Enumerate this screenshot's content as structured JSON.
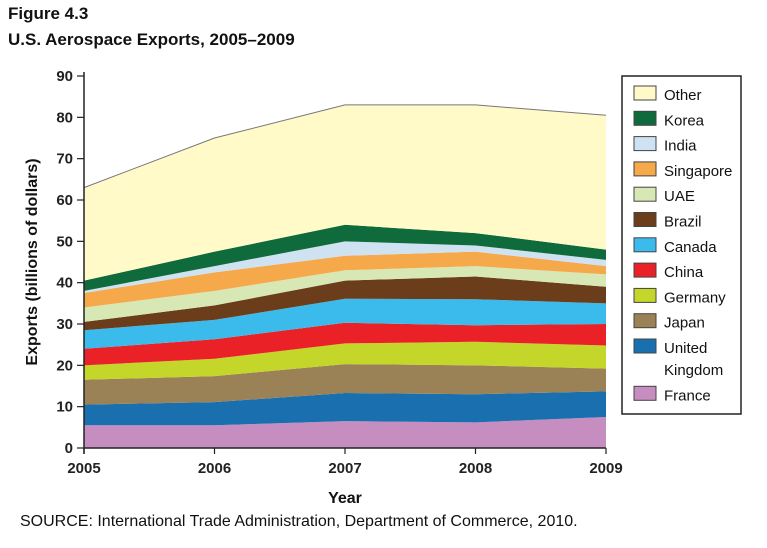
{
  "figure": {
    "label": "Figure 4.3",
    "title": "U.S. Aerospace Exports, 2005–2009",
    "source": "SOURCE: International Trade Administration, Department of Commerce, 2010."
  },
  "chart_data": {
    "type": "area",
    "stacked": true,
    "title": "U.S. Aerospace Exports, 2005–2009",
    "xlabel": "Year",
    "ylabel": "Exports (billions of dollars)",
    "x": [
      "2005",
      "2006",
      "2007",
      "2008",
      "2009"
    ],
    "ylim": [
      0,
      90
    ],
    "yticks": [
      0,
      10,
      20,
      30,
      40,
      50,
      60,
      70,
      80,
      90
    ],
    "grid": false,
    "legend_position": "right",
    "series": [
      {
        "name": "France",
        "color": "#c68dc0",
        "values": [
          5.5,
          5.5,
          6.5,
          6.2,
          7.5
        ]
      },
      {
        "name": "United Kingdom",
        "color": "#1a6fae",
        "values": [
          5.0,
          5.6,
          6.8,
          6.8,
          6.2
        ]
      },
      {
        "name": "Japan",
        "color": "#9b8156",
        "values": [
          6.0,
          6.3,
          7.0,
          7.0,
          5.5
        ]
      },
      {
        "name": "Germany",
        "color": "#c4d62a",
        "values": [
          3.5,
          4.2,
          5.0,
          5.7,
          5.6
        ]
      },
      {
        "name": "China",
        "color": "#ea2228",
        "values": [
          4.0,
          4.7,
          5.0,
          4.0,
          5.2
        ]
      },
      {
        "name": "Canada",
        "color": "#3bbbeb",
        "values": [
          4.5,
          4.7,
          5.8,
          6.3,
          5.0
        ]
      },
      {
        "name": "Brazil",
        "color": "#6b3d1b",
        "values": [
          2.0,
          3.5,
          4.4,
          5.5,
          4.0
        ]
      },
      {
        "name": "UAE",
        "color": "#d7e8b5",
        "values": [
          3.5,
          3.5,
          2.5,
          2.5,
          3.0
        ]
      },
      {
        "name": "Singapore",
        "color": "#f6a94a",
        "values": [
          3.5,
          4.5,
          3.5,
          3.5,
          2.0
        ]
      },
      {
        "name": "India",
        "color": "#cfe2f2",
        "values": [
          0.5,
          1.5,
          3.5,
          1.5,
          1.5
        ]
      },
      {
        "name": "Korea",
        "color": "#0f6b3b",
        "values": [
          2.5,
          3.5,
          4.0,
          3.0,
          2.5
        ]
      },
      {
        "name": "Other",
        "color": "#fffac8",
        "values": [
          22.5,
          27.5,
          29.0,
          31.0,
          32.5
        ]
      }
    ]
  }
}
